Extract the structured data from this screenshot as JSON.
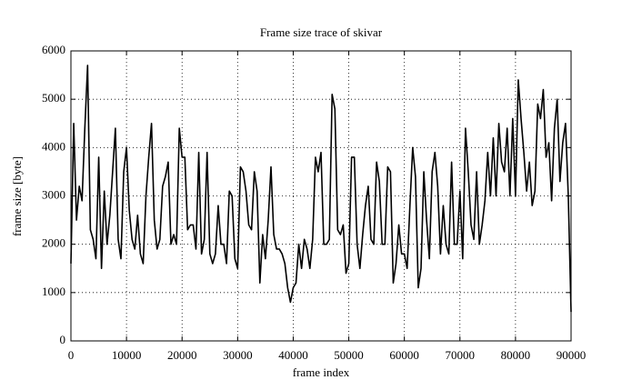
{
  "chart_data": {
    "type": "line",
    "title": "Frame size trace of skivar",
    "x_label": "frame index",
    "y_label": "frame size [byte]",
    "xlim": [
      0,
      90000
    ],
    "xticks": [
      0,
      10000,
      20000,
      30000,
      40000,
      50000,
      60000,
      70000,
      80000,
      90000
    ],
    "ylim": [
      0,
      6000
    ],
    "yticks": [
      0,
      1000,
      2000,
      3000,
      4000,
      5000,
      6000
    ],
    "grid": true,
    "series": [
      {
        "color": "#000000",
        "x": [
          0,
          500,
          1000,
          1500,
          2000,
          2500,
          3000,
          3500,
          4000,
          4500,
          5000,
          5500,
          6000,
          6500,
          7000,
          8000,
          8500,
          9000,
          9500,
          10000,
          10500,
          11000,
          11500,
          12000,
          12500,
          13000,
          13500,
          14000,
          14500,
          15000,
          15500,
          16000,
          16500,
          17000,
          17500,
          18000,
          18500,
          19000,
          19500,
          20000,
          20500,
          21000,
          21500,
          22000,
          22500,
          23000,
          23500,
          24000,
          24500,
          25000,
          25500,
          26000,
          26500,
          27000,
          27500,
          28000,
          28500,
          29000,
          29500,
          30000,
          30500,
          31000,
          31500,
          32000,
          32500,
          33000,
          33500,
          34000,
          34500,
          35000,
          35500,
          36000,
          36500,
          37000,
          37500,
          38000,
          38500,
          39000,
          39500,
          40000,
          40500,
          41000,
          41500,
          42000,
          42500,
          43000,
          43500,
          44000,
          44500,
          45000,
          45500,
          46000,
          46500,
          47000,
          47500,
          48000,
          48500,
          49000,
          49500,
          50000,
          50500,
          51000,
          51500,
          52000,
          52500,
          53000,
          53500,
          54000,
          54500,
          55000,
          55500,
          56000,
          56500,
          57000,
          57500,
          58000,
          58500,
          59000,
          59500,
          60000,
          60500,
          61000,
          61500,
          62000,
          62500,
          63000,
          63500,
          64000,
          64500,
          65000,
          65500,
          66000,
          66500,
          67000,
          67500,
          68000,
          68500,
          69000,
          69500,
          70000,
          70500,
          71000,
          71500,
          72000,
          72500,
          73000,
          73500,
          74000,
          74500,
          75000,
          75500,
          76000,
          76500,
          77000,
          77500,
          78000,
          78500,
          79000,
          79500,
          80000,
          80500,
          81000,
          81500,
          82000,
          82500,
          83000,
          83500,
          84000,
          84500,
          85000,
          85500,
          86000,
          86500,
          87000,
          87500,
          88000,
          88500,
          89000,
          89500,
          90000
        ],
        "values": [
          1600,
          4500,
          2500,
          3200,
          2900,
          4400,
          5700,
          2300,
          2100,
          1700,
          3800,
          1500,
          3100,
          2000,
          2600,
          4400,
          2100,
          1700,
          3500,
          4000,
          2700,
          2100,
          1900,
          2600,
          1800,
          1600,
          3000,
          3800,
          4500,
          2500,
          1900,
          2100,
          3200,
          3400,
          3700,
          2000,
          2200,
          2000,
          4400,
          3800,
          3800,
          2300,
          2400,
          2400,
          1900,
          3900,
          1800,
          2100,
          3900,
          1800,
          1600,
          1800,
          2800,
          2000,
          2000,
          1600,
          3100,
          3000,
          1700,
          1500,
          3600,
          3500,
          3100,
          2400,
          2300,
          3500,
          3100,
          1200,
          2200,
          1700,
          2500,
          3600,
          2200,
          1900,
          1900,
          1800,
          1600,
          1100,
          800,
          1100,
          1200,
          2000,
          1500,
          2100,
          1900,
          1500,
          2100,
          3800,
          3500,
          3900,
          2000,
          2000,
          2100,
          5100,
          4800,
          2300,
          2200,
          2400,
          1400,
          1600,
          3800,
          3800,
          2000,
          1500,
          2200,
          2800,
          3200,
          2100,
          2000,
          3700,
          3300,
          2000,
          2000,
          3600,
          3500,
          1200,
          1600,
          2400,
          1800,
          1800,
          1500,
          2800,
          4000,
          3400,
          1100,
          1500,
          3500,
          2500,
          1700,
          3500,
          3900,
          3200,
          1800,
          2800,
          2000,
          1800,
          3700,
          2000,
          2000,
          3100,
          1700,
          4400,
          3500,
          2400,
          2100,
          3500,
          2000,
          2400,
          2900,
          3900,
          3000,
          4200,
          3000,
          4500,
          3700,
          3500,
          4400,
          3000,
          4600,
          3000,
          5400,
          4600,
          3900,
          3100,
          3700,
          2800,
          3100,
          4900,
          4600,
          5200,
          3800,
          4100,
          2900,
          4400,
          5000,
          3300,
          4100,
          4500,
          3000,
          600
        ]
      }
    ]
  }
}
